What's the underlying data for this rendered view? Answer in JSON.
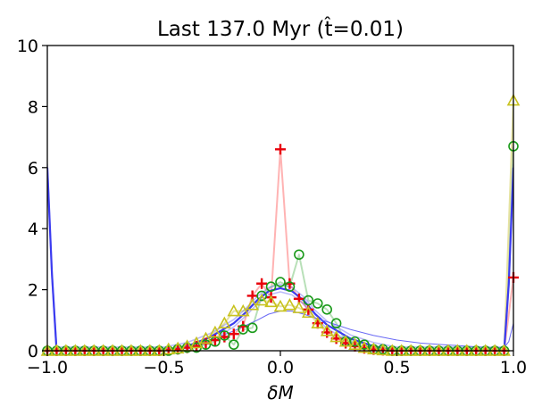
{
  "chart_data": {
    "type": "line",
    "title": "Last 137.0 Myr (t̂=0.01)",
    "xlabel": "δM",
    "ylabel": "",
    "xlim": [
      -1.0,
      1.0
    ],
    "ylim": [
      0,
      10
    ],
    "grid": false,
    "legend": "none",
    "xticks": [
      -1.0,
      -0.5,
      0.0,
      0.5,
      1.0
    ],
    "xtick_labels": [
      "−1.0",
      "−0.5",
      "0.0",
      "0.5",
      "1.0"
    ],
    "yticks": [
      0,
      2,
      4,
      6,
      8,
      10
    ],
    "ytick_labels": [
      "0",
      "2",
      "4",
      "6",
      "8",
      "10"
    ],
    "series": [
      {
        "marker": "plus",
        "color": "#e8000b",
        "line_color": "#ffb3b3",
        "x": [
          -1.0,
          -0.96,
          -0.92,
          -0.88,
          -0.84,
          -0.8,
          -0.76,
          -0.72,
          -0.68,
          -0.64,
          -0.6,
          -0.56,
          -0.52,
          -0.48,
          -0.44,
          -0.4,
          -0.36,
          -0.32,
          -0.28,
          -0.24,
          -0.2,
          -0.16,
          -0.12,
          -0.08,
          -0.04,
          0.0,
          0.04,
          0.08,
          0.12,
          0.16,
          0.2,
          0.24,
          0.28,
          0.32,
          0.36,
          0.4,
          0.44,
          0.48,
          0.52,
          0.56,
          0.6,
          0.64,
          0.68,
          0.72,
          0.76,
          0.8,
          0.84,
          0.88,
          0.92,
          0.96,
          1.0
        ],
        "y": [
          0.0,
          0.0,
          0.0,
          0.0,
          0.0,
          0.0,
          0.0,
          0.0,
          0.0,
          0.0,
          0.0,
          0.0,
          0.0,
          0.02,
          0.05,
          0.1,
          0.15,
          0.25,
          0.35,
          0.45,
          0.55,
          0.8,
          1.8,
          2.2,
          1.75,
          6.6,
          2.2,
          1.7,
          1.35,
          0.9,
          0.6,
          0.4,
          0.25,
          0.15,
          0.08,
          0.04,
          0.02,
          0.0,
          0.0,
          0.0,
          0.0,
          0.0,
          0.0,
          0.0,
          0.0,
          0.0,
          0.0,
          0.0,
          0.0,
          0.0,
          2.4
        ]
      },
      {
        "marker": "circle",
        "color": "#1a9a1a",
        "line_color": "#b8e0b8",
        "x": [
          -1.0,
          -0.96,
          -0.92,
          -0.88,
          -0.84,
          -0.8,
          -0.76,
          -0.72,
          -0.68,
          -0.64,
          -0.6,
          -0.56,
          -0.52,
          -0.48,
          -0.44,
          -0.4,
          -0.36,
          -0.32,
          -0.28,
          -0.24,
          -0.2,
          -0.16,
          -0.12,
          -0.08,
          -0.04,
          0.0,
          0.04,
          0.08,
          0.12,
          0.16,
          0.2,
          0.24,
          0.28,
          0.32,
          0.36,
          0.4,
          0.44,
          0.48,
          0.52,
          0.56,
          0.6,
          0.64,
          0.68,
          0.72,
          0.76,
          0.8,
          0.84,
          0.88,
          0.92,
          0.96,
          1.0
        ],
        "y": [
          0.0,
          0.0,
          0.0,
          0.0,
          0.0,
          0.0,
          0.0,
          0.0,
          0.0,
          0.0,
          0.0,
          0.0,
          0.0,
          0.0,
          0.05,
          0.1,
          0.1,
          0.2,
          0.3,
          0.5,
          0.2,
          0.7,
          0.75,
          1.8,
          2.1,
          2.25,
          2.1,
          3.15,
          1.65,
          1.55,
          1.35,
          0.9,
          0.3,
          0.3,
          0.2,
          0.05,
          0.05,
          0.0,
          0.0,
          0.0,
          0.0,
          0.0,
          0.0,
          0.0,
          0.0,
          0.0,
          0.0,
          0.0,
          0.0,
          0.0,
          6.7
        ]
      },
      {
        "marker": "triangle",
        "color": "#c8c21e",
        "line_color": "#e6e3a0",
        "x": [
          -1.0,
          -0.96,
          -0.92,
          -0.88,
          -0.84,
          -0.8,
          -0.76,
          -0.72,
          -0.68,
          -0.64,
          -0.6,
          -0.56,
          -0.52,
          -0.48,
          -0.44,
          -0.4,
          -0.36,
          -0.32,
          -0.28,
          -0.24,
          -0.2,
          -0.16,
          -0.12,
          -0.08,
          -0.04,
          0.0,
          0.04,
          0.08,
          0.12,
          0.16,
          0.2,
          0.24,
          0.28,
          0.32,
          0.36,
          0.4,
          0.44,
          0.48,
          0.52,
          0.56,
          0.6,
          0.64,
          0.68,
          0.72,
          0.76,
          0.8,
          0.84,
          0.88,
          0.92,
          0.96,
          1.0
        ],
        "y": [
          0.0,
          0.0,
          0.0,
          0.0,
          0.0,
          0.0,
          0.0,
          0.0,
          0.0,
          0.0,
          0.0,
          0.0,
          0.0,
          0.05,
          0.08,
          0.15,
          0.25,
          0.4,
          0.6,
          0.9,
          1.3,
          1.3,
          1.5,
          1.65,
          1.6,
          1.45,
          1.5,
          1.4,
          1.25,
          0.9,
          0.65,
          0.45,
          0.3,
          0.2,
          0.1,
          0.05,
          0.02,
          0.0,
          0.0,
          0.0,
          0.0,
          0.0,
          0.0,
          0.0,
          0.0,
          0.0,
          0.0,
          0.0,
          0.0,
          0.0,
          8.2
        ]
      },
      {
        "marker": "none",
        "color": "#3b3bf0",
        "line_color": "#3b3bf0",
        "style": "band",
        "x": [
          -1.0,
          -0.98,
          -0.96,
          -0.9,
          -0.8,
          -0.7,
          -0.6,
          -0.5,
          -0.4,
          -0.3,
          -0.2,
          -0.15,
          -0.1,
          -0.05,
          0.0,
          0.05,
          0.1,
          0.15,
          0.2,
          0.3,
          0.4,
          0.5,
          0.6,
          0.7,
          0.8,
          0.9,
          0.96,
          0.98,
          1.0
        ],
        "y": [
          6.0,
          2.5,
          0.0,
          0.0,
          0.0,
          0.0,
          0.0,
          0.0,
          0.15,
          0.45,
          0.9,
          1.25,
          1.65,
          1.95,
          2.05,
          1.95,
          1.65,
          1.2,
          0.85,
          0.4,
          0.15,
          0.0,
          0.0,
          0.0,
          0.0,
          0.0,
          0.0,
          2.2,
          6.0
        ]
      },
      {
        "marker": "none",
        "color": "#6a6af5",
        "line_color": "#6a6af5",
        "style": "thin",
        "x": [
          -1.0,
          -0.98,
          -0.96,
          -0.9,
          -0.8,
          -0.7,
          -0.6,
          -0.5,
          -0.4,
          -0.3,
          -0.2,
          -0.1,
          -0.05,
          0.0,
          0.05,
          0.1,
          0.2,
          0.3,
          0.4,
          0.5,
          0.6,
          0.7,
          0.8,
          0.9,
          0.96,
          0.98,
          1.0
        ],
        "y": [
          0.0,
          0.0,
          0.0,
          0.0,
          0.0,
          0.0,
          0.0,
          0.05,
          0.15,
          0.35,
          0.65,
          1.0,
          1.2,
          1.3,
          1.3,
          1.2,
          0.95,
          0.7,
          0.5,
          0.35,
          0.25,
          0.2,
          0.15,
          0.1,
          0.1,
          0.3,
          0.9
        ]
      }
    ]
  }
}
